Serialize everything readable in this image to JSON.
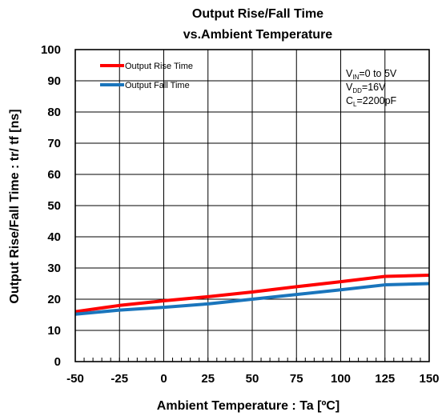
{
  "chart_data": {
    "type": "line",
    "title_line1": "Output Rise/Fall Time",
    "title_line2": "vs.Ambient Temperature",
    "xlabel": "Ambient Temperature : Ta [ºC]",
    "ylabel": "Output Rise/Fall Time : tr/ tf [ns]",
    "xlim": [
      -50,
      150
    ],
    "ylim": [
      0,
      100
    ],
    "x_ticks": [
      -50,
      -25,
      0,
      25,
      50,
      75,
      100,
      125,
      150
    ],
    "y_ticks": [
      0,
      10,
      20,
      30,
      40,
      50,
      60,
      70,
      80,
      90,
      100
    ],
    "grid": true,
    "legend_position": "top-left",
    "x": [
      -50,
      -25,
      0,
      25,
      50,
      75,
      100,
      125,
      150
    ],
    "series": [
      {
        "name": "Output Rise Time",
        "color": "#ff0000",
        "values": [
          16,
          18,
          19.5,
          20.8,
          22.3,
          24,
          25.6,
          27.3,
          27.7
        ]
      },
      {
        "name": "Output Fall Time",
        "color": "#1a75bc",
        "values": [
          15.2,
          16.5,
          17.4,
          18.5,
          20,
          21.5,
          23,
          24.6,
          25
        ]
      }
    ],
    "annotation": {
      "line1": {
        "main": "V",
        "sub": "IN",
        "rest": "=0 to 5V"
      },
      "line2": {
        "main": "V",
        "sub": "DD",
        "rest": "=16V"
      },
      "line3": {
        "main": "C",
        "sub": "L",
        "rest": "=2200pF"
      }
    }
  }
}
